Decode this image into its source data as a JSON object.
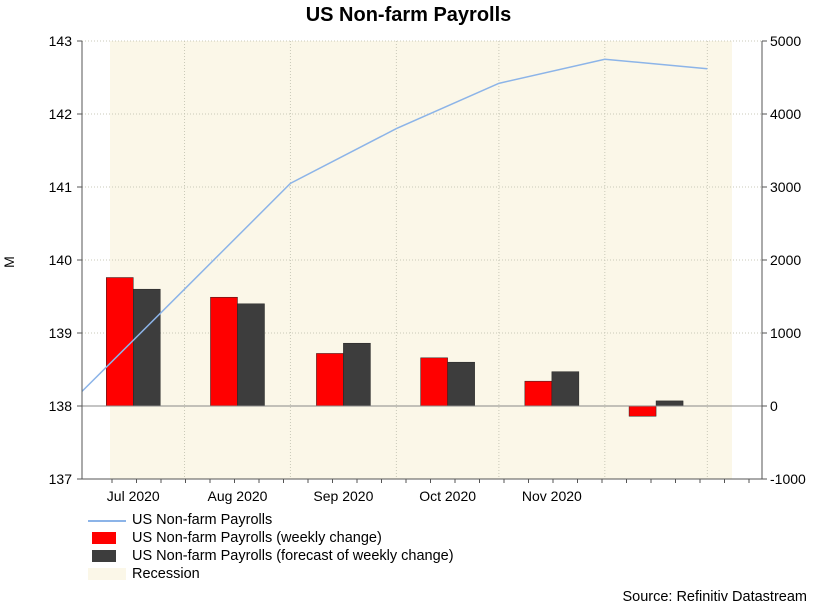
{
  "chart_data": {
    "type": "bar",
    "title": "US Non-farm Payrolls",
    "ylabel_left": "M",
    "ylim_left": [
      137,
      143
    ],
    "yticks_left": [
      137,
      138,
      139,
      140,
      141,
      142,
      143
    ],
    "ylim_right": [
      -1000,
      5000
    ],
    "yticks_right": [
      -1000,
      0,
      1000,
      2000,
      3000,
      4000,
      5000
    ],
    "categories": [
      "Jul 2020",
      "Aug 2020",
      "Sep 2020",
      "Oct 2020",
      "Nov 2020",
      ""
    ],
    "x_tick_labels": [
      "Jul 2020",
      "Aug 2020",
      "Sep 2020",
      "Oct 2020",
      "Nov 2020"
    ],
    "series": [
      {
        "name": "US Non-farm Payrolls",
        "kind": "line",
        "axis": "left",
        "color": "#8cb4e8",
        "points": [
          {
            "x": "2020-06-01",
            "y": 138.2
          },
          {
            "x": "2020-07-01",
            "y": 139.6
          },
          {
            "x": "2020-08-01",
            "y": 141.05
          },
          {
            "x": "2020-09-01",
            "y": 141.8
          },
          {
            "x": "2020-10-01",
            "y": 142.42
          },
          {
            "x": "2020-11-01",
            "y": 142.75
          },
          {
            "x": "2020-12-01",
            "y": 142.62
          }
        ]
      },
      {
        "name": "US Non-farm Payrolls (weekly change)",
        "kind": "bar",
        "axis": "right",
        "color": "#ff0000",
        "values": [
          1760,
          1490,
          720,
          660,
          340,
          -140
        ]
      },
      {
        "name": "US Non-farm Payrolls (forecast of weekly change)",
        "kind": "bar",
        "axis": "right",
        "color": "#3d3d3d",
        "values": [
          1600,
          1400,
          860,
          600,
          470,
          70
        ]
      }
    ],
    "recession": {
      "name": "Recession",
      "color": "#fbf7e8"
    },
    "grid": true,
    "legend_position": "bottom-left",
    "source": "Source: Refinitiv Datastream"
  }
}
